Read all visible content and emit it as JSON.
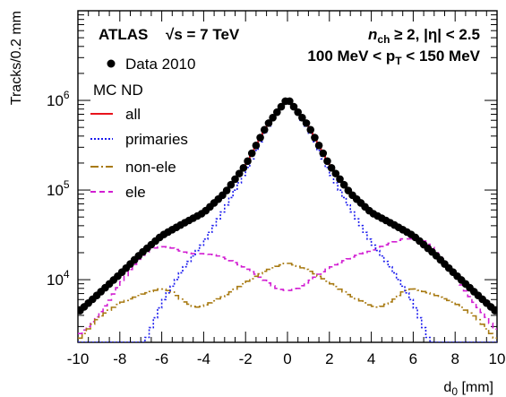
{
  "chart_data": {
    "type": "line",
    "title": "",
    "header": {
      "experiment": "ATLAS",
      "energy_prefix": "√s",
      "energy_value": " = 7 TeV",
      "selection_nch_base": "n",
      "selection_nch_sub": "ch",
      "selection_nch_rest": " ≥ 2, |η| < 2.5",
      "pt_range_low": "100 MeV < p",
      "pt_range_sub": "T",
      "pt_range_high": " < 150 MeV"
    },
    "xlabel": "d",
    "xlabel_sub": "0",
    "xlabel_unit": " [mm]",
    "ylabel": "Tracks/0.2 mm",
    "xlim": [
      -10,
      10
    ],
    "ylim": [
      2000,
      10000000
    ],
    "yscale": "log",
    "x_ticks": [
      -10,
      -8,
      -6,
      -4,
      -2,
      0,
      2,
      4,
      6,
      8,
      10
    ],
    "x_tick_labels": [
      "-10",
      "-8",
      "-6",
      "-4",
      "-2",
      "0",
      "2",
      "4",
      "6",
      "8",
      "10"
    ],
    "y_tick_labels": [
      {
        "value": 10000,
        "base": "10",
        "exp": "4"
      },
      {
        "value": 100000,
        "base": "10",
        "exp": "5"
      },
      {
        "value": 1000000,
        "base": "10",
        "exp": "6"
      }
    ],
    "legend": {
      "placement": "top-left",
      "data_entry": "Data 2010",
      "group_title": "MC ND"
    },
    "colors": {
      "all": "#e8141c",
      "primaries": "#1a1aee",
      "non_ele": "#a87a12",
      "ele": "#d21ed2",
      "data": "#000000"
    },
    "series": [
      {
        "key": "all",
        "name": "all",
        "style": "solid",
        "x": [
          -10,
          -9,
          -8,
          -7,
          -6,
          -5,
          -4,
          -3,
          -2,
          -1,
          0,
          1,
          2,
          3,
          4,
          5,
          6,
          7,
          8,
          9,
          10
        ],
        "values": [
          4300,
          7000,
          11500,
          19500,
          31000,
          42000,
          56000,
          92000,
          190000,
          520000,
          1050000,
          520000,
          190000,
          92000,
          56000,
          42000,
          31000,
          19500,
          11500,
          7000,
          4300
        ]
      },
      {
        "key": "primaries",
        "name": "primaries",
        "style": "dotted",
        "x": [
          -6.8,
          -6,
          -5,
          -4,
          -3,
          -2,
          -1,
          0,
          1,
          2,
          3,
          4,
          5,
          6,
          6.8
        ],
        "values": [
          2000,
          5500,
          13000,
          26000,
          62000,
          160000,
          480000,
          1000000,
          480000,
          160000,
          62000,
          26000,
          13000,
          5500,
          2000
        ]
      },
      {
        "key": "non_ele",
        "name": "non-ele",
        "style": "dashdot",
        "x": [
          -10,
          -9,
          -8,
          -7,
          -6,
          -5.5,
          -5,
          -4.4,
          -4,
          -3,
          -2,
          -1,
          0,
          1,
          2,
          3,
          4,
          4.4,
          5,
          5.5,
          6,
          7,
          8,
          9,
          10
        ],
        "values": [
          2100,
          3800,
          5500,
          6800,
          8000,
          7300,
          5800,
          4900,
          5100,
          6600,
          9300,
          12800,
          15500,
          12800,
          9300,
          6600,
          5100,
          4900,
          5800,
          7300,
          8000,
          6800,
          5500,
          3800,
          2100
        ]
      },
      {
        "key": "ele",
        "name": "ele",
        "style": "dashed",
        "x": [
          -10,
          -9.5,
          -9,
          -8.5,
          -8,
          -7.5,
          -7,
          -6.5,
          -6,
          -5.5,
          -5,
          -4.5,
          -4,
          -3.5,
          -3,
          -2.5,
          -2,
          -1.5,
          -1,
          -0.5,
          0,
          0.5,
          1,
          1.5,
          2,
          2.5,
          3,
          3.5,
          4,
          4.5,
          5,
          5.5,
          6,
          6.5,
          7,
          7.5,
          8,
          8.5,
          9,
          9.5,
          10
        ],
        "values": [
          2400,
          3000,
          4100,
          5900,
          8800,
          13000,
          18000,
          22000,
          23500,
          22500,
          20500,
          19500,
          19500,
          19000,
          17500,
          15500,
          13500,
          11500,
          9500,
          8000,
          7500,
          8000,
          9500,
          11500,
          13500,
          15500,
          17500,
          19500,
          21000,
          23500,
          26000,
          28500,
          28500,
          27000,
          22000,
          16000,
          11000,
          7500,
          5200,
          3800,
          2600
        ]
      },
      {
        "key": "data",
        "name": "Data 2010",
        "style": "markers",
        "x": [
          -10,
          -9,
          -8,
          -7,
          -6,
          -5,
          -4,
          -3,
          -2,
          -1,
          0,
          1,
          2,
          3,
          4,
          5,
          6,
          7,
          8,
          9,
          10
        ],
        "values": [
          4300,
          7000,
          11500,
          19500,
          31000,
          42000,
          56000,
          92000,
          190000,
          520000,
          1050000,
          520000,
          190000,
          92000,
          56000,
          42000,
          31000,
          19500,
          11500,
          7000,
          4300
        ]
      }
    ]
  }
}
